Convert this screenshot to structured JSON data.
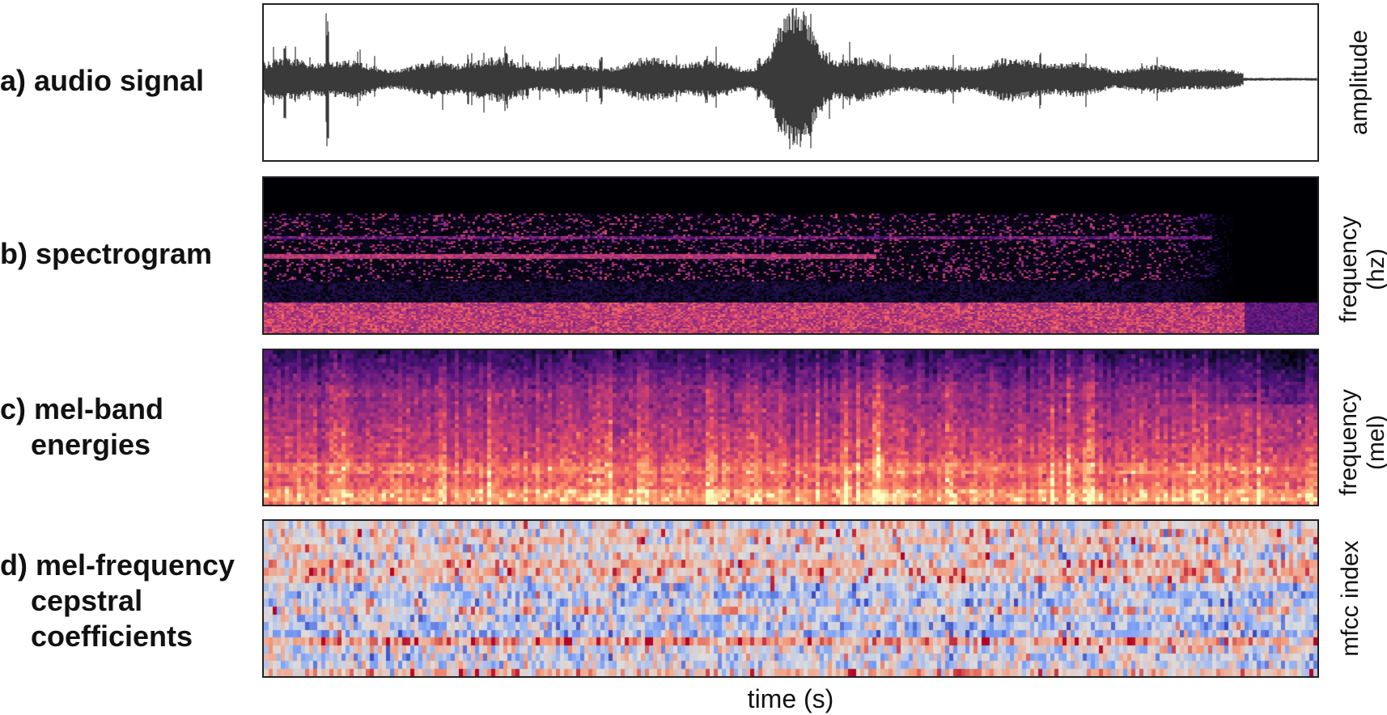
{
  "chart_data": [
    {
      "type": "line",
      "panel": "a)",
      "title": "audio signal",
      "ylabel": "amplitude",
      "xlabel": "",
      "color": "#3a3a3a",
      "note": "audio waveform; large transients near the start and a dominant burst around the middle, decaying to near-silence at the end"
    },
    {
      "type": "heatmap",
      "panel": "b)",
      "title": "spectrogram",
      "ylabel": "frequency (hz)",
      "xlabel": "",
      "colormap": "magma"
    },
    {
      "type": "heatmap",
      "panel": "c)",
      "title": "mel-band energies",
      "ylabel": "frequency (mel)",
      "xlabel": "",
      "colormap": "magma"
    },
    {
      "type": "heatmap",
      "panel": "d)",
      "title": "mel-frequency cepstral coefficients",
      "ylabel": "mfcc index",
      "xlabel": "time (s)",
      "colormap": "coolwarm"
    }
  ],
  "labels": {
    "a_line1": "a) audio signal",
    "b_line1": "b) spectrogram",
    "c_line1": "c) mel-band",
    "c_line2": "energies",
    "d_line1": "d) mel-frequency",
    "d_line2": "cepstral",
    "d_line3": "coefficients",
    "ylabel_a": "amplitude",
    "ylabel_b": "frequency\n(hz)",
    "ylabel_c": "frequency\n(mel)",
    "ylabel_d": "mfcc index",
    "xlabel": "time (s)"
  }
}
